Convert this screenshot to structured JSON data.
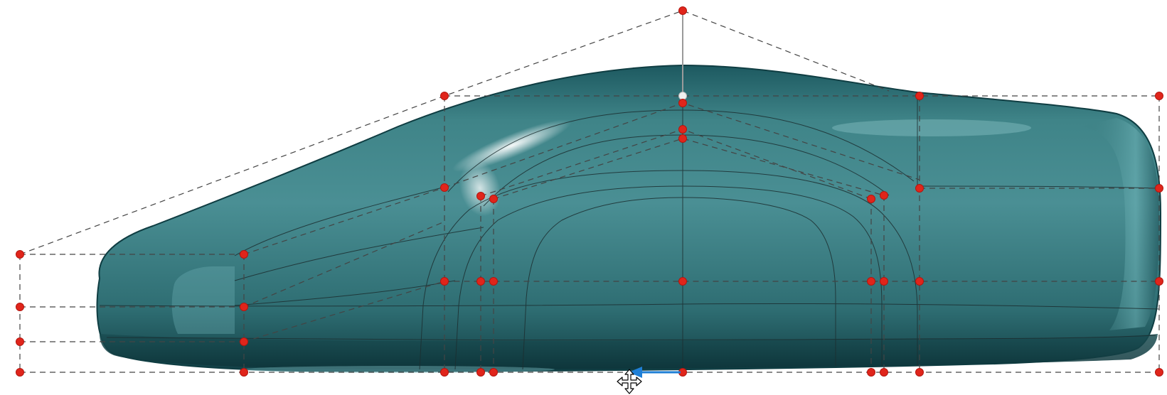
{
  "viewport": {
    "background": "#ffffff",
    "model_name": "car-body-surface",
    "colors": {
      "surface": "#2f6f73",
      "surface_dark": "#164a50",
      "surface_light": "#5ea3a8",
      "control_point": "#e0251b",
      "cage_line": "#444444",
      "isoline": "#1c2e30",
      "gizmo_arrow": "#1f7fd6"
    },
    "icons": {
      "cursor": "move-cursor-icon",
      "gizmo": "translate-arrow-icon"
    }
  }
}
